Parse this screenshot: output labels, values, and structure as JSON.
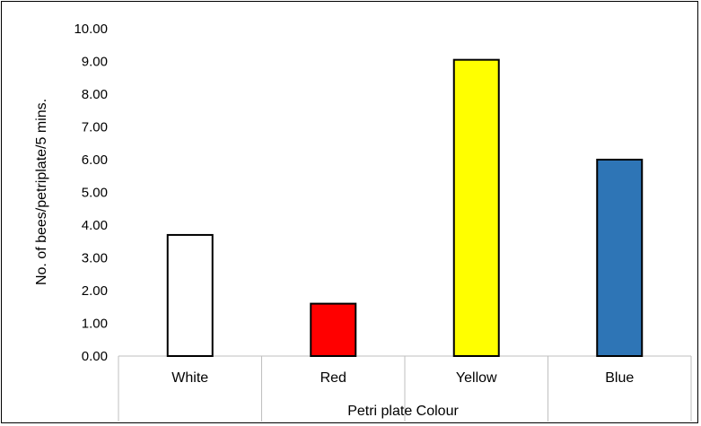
{
  "chart_data": {
    "type": "bar",
    "title": "",
    "xlabel": "Petri plate Colour",
    "ylabel": "No. of bees/petriplate/5 mins.",
    "categories": [
      "White",
      "Red",
      "Yellow",
      "Blue"
    ],
    "values": [
      3.7,
      1.6,
      9.05,
      6.0
    ],
    "bar_colors": [
      "#ffffff",
      "#ff0000",
      "#ffff00",
      "#2e75b6"
    ],
    "ylim": [
      0,
      10
    ],
    "yticks": [
      0,
      1,
      2,
      3,
      4,
      5,
      6,
      7,
      8,
      9,
      10
    ],
    "ytick_labels": [
      "0.00",
      "1.00",
      "2.00",
      "3.00",
      "4.00",
      "5.00",
      "6.00",
      "7.00",
      "8.00",
      "9.00",
      "10.00"
    ],
    "grid": false,
    "legend": "none"
  }
}
